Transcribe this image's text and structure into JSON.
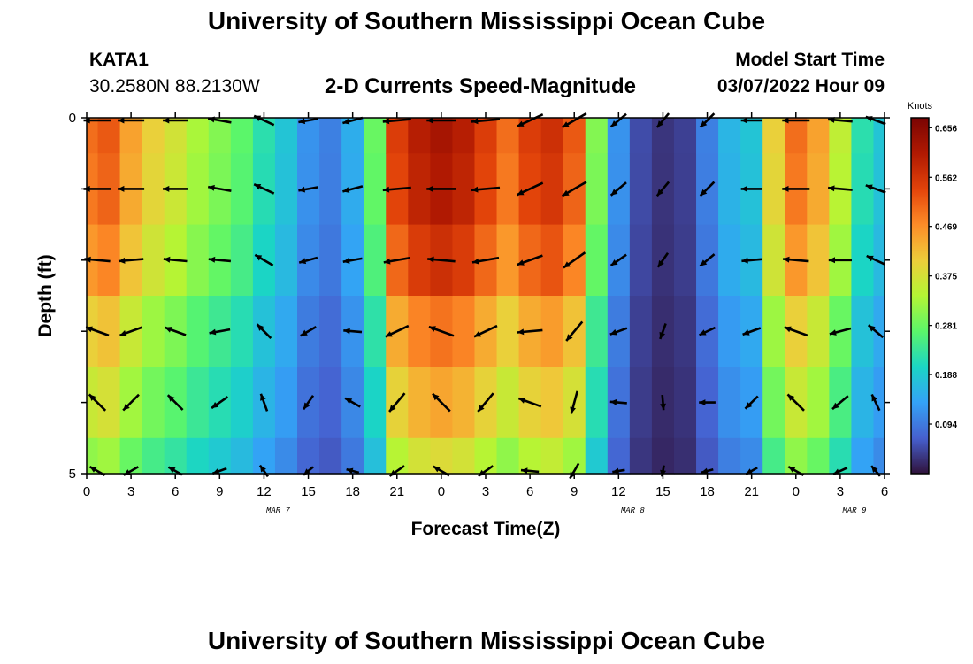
{
  "header": {
    "title": "University of Southern Mississippi Ocean Cube",
    "station_id": "KATA1",
    "coordinates": "30.2580N  88.2130W",
    "subtitle": "2-D Currents Speed-Magnitude",
    "model_start_label": "Model Start Time",
    "model_start_value": "03/07/2022 Hour 09"
  },
  "footer": {
    "title": "University of Southern Mississippi Ocean Cube"
  },
  "chart_data": {
    "type": "heatmap",
    "title": "2-D Currents Speed-Magnitude",
    "xlabel": "Forecast Time(Z)",
    "ylabel": "Depth (ft)",
    "x_tick_labels": [
      "0",
      "3",
      "6",
      "9",
      "12",
      "15",
      "18",
      "21",
      "0",
      "3",
      "6",
      "9",
      "12",
      "15",
      "18",
      "21",
      "0",
      "3",
      "6"
    ],
    "date_labels": [
      {
        "label": "MAR 7",
        "tick_index": 4
      },
      {
        "label": "MAR 8",
        "tick_index": 12
      },
      {
        "label": "MAR 9",
        "tick_index": 17
      }
    ],
    "y_tick_labels": [
      "0",
      "",
      "",
      "",
      "",
      "5"
    ],
    "ylim": [
      0,
      5
    ],
    "colorbar": {
      "unit": "Knots",
      "ticks": [
        0.656,
        0.562,
        0.469,
        0.375,
        0.281,
        0.188,
        0.094
      ],
      "min": 0.0,
      "max": 0.675
    },
    "hours": [
      0,
      1.5,
      3,
      4.5,
      6,
      7.5,
      9,
      10.5,
      12,
      13.5,
      15,
      16.5,
      18,
      19.5,
      21,
      22.5,
      24,
      25.5,
      27,
      28.5,
      30,
      31.5,
      33,
      34.5,
      36,
      37.5,
      39,
      40.5,
      42,
      43.5,
      45,
      46.5,
      48,
      49.5,
      51,
      52.5,
      54
    ],
    "speed_by_hour": [
      0.5,
      0.52,
      0.45,
      0.4,
      0.37,
      0.33,
      0.3,
      0.27,
      0.22,
      0.18,
      0.12,
      0.1,
      0.15,
      0.28,
      0.55,
      0.6,
      0.62,
      0.6,
      0.55,
      0.5,
      0.55,
      0.57,
      0.52,
      0.3,
      0.12,
      0.05,
      0.03,
      0.04,
      0.1,
      0.16,
      0.18,
      0.4,
      0.5,
      0.45,
      0.35,
      0.22,
      0.18
    ],
    "depth_bands": [
      {
        "depth_range": [
          0,
          0.5
        ],
        "factor": 1.0
      },
      {
        "depth_range": [
          0.5,
          1.5
        ],
        "factor": 0.98
      },
      {
        "depth_range": [
          1.5,
          2.5
        ],
        "factor": 0.92
      },
      {
        "depth_range": [
          2.5,
          3.5
        ],
        "factor": 0.8
      },
      {
        "depth_range": [
          3.5,
          4.5
        ],
        "factor": 0.72
      },
      {
        "depth_range": [
          4.5,
          5.0
        ],
        "factor": 0.62
      }
    ],
    "vectors": {
      "hours": [
        0,
        3,
        6,
        9,
        12,
        15,
        18,
        21,
        24,
        27,
        30,
        33,
        36,
        39,
        42,
        45,
        48,
        51,
        54
      ],
      "depths": [
        0,
        1,
        2,
        3,
        4,
        5
      ],
      "direction_deg_by_hour": [
        180,
        180,
        180,
        170,
        155,
        190,
        195,
        185,
        180,
        185,
        205,
        210,
        220,
        230,
        225,
        180,
        180,
        175,
        160
      ],
      "speed_scale_by_depth": [
        0.95,
        0.95,
        0.9,
        0.85,
        0.8,
        0.6
      ],
      "direction_offset_by_depth": [
        0,
        0,
        5,
        20,
        45,
        30
      ]
    }
  }
}
